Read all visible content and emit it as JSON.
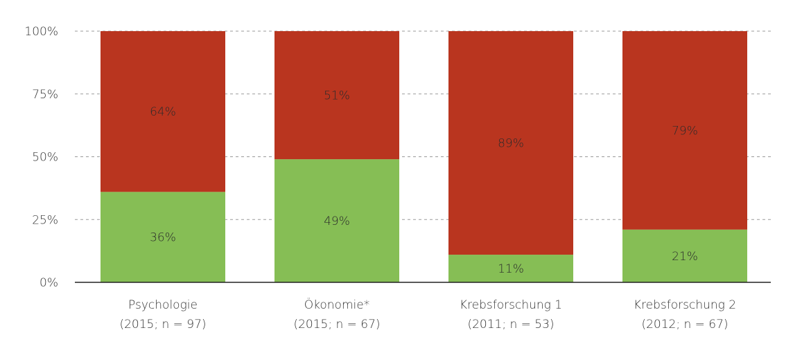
{
  "chart_data": {
    "type": "bar",
    "stacked": true,
    "percent": true,
    "categories": [
      [
        "Psychologie",
        "(2015; n = 97)"
      ],
      [
        "Ökonomie*",
        "(2015; n = 67)"
      ],
      [
        "Krebsforschung 1",
        "(2011; n = 53)"
      ],
      [
        "Krebsforschung 2",
        "(2012; n = 67)"
      ]
    ],
    "series": [
      {
        "color": "#86be55",
        "values": [
          36,
          49,
          11,
          21
        ],
        "labels": [
          "36%",
          "49%",
          "11%",
          "21%"
        ]
      },
      {
        "color": "#b9351f",
        "values": [
          64,
          51,
          89,
          79
        ],
        "labels": [
          "64%",
          "51%",
          "89%",
          "79%"
        ]
      }
    ],
    "ylim": [
      0,
      100
    ],
    "yticks": [
      0,
      25,
      50,
      75,
      100
    ],
    "ytick_labels": [
      "0%",
      "25%",
      "50%",
      "75%",
      "100%"
    ],
    "grid": true,
    "legend": "none"
  }
}
